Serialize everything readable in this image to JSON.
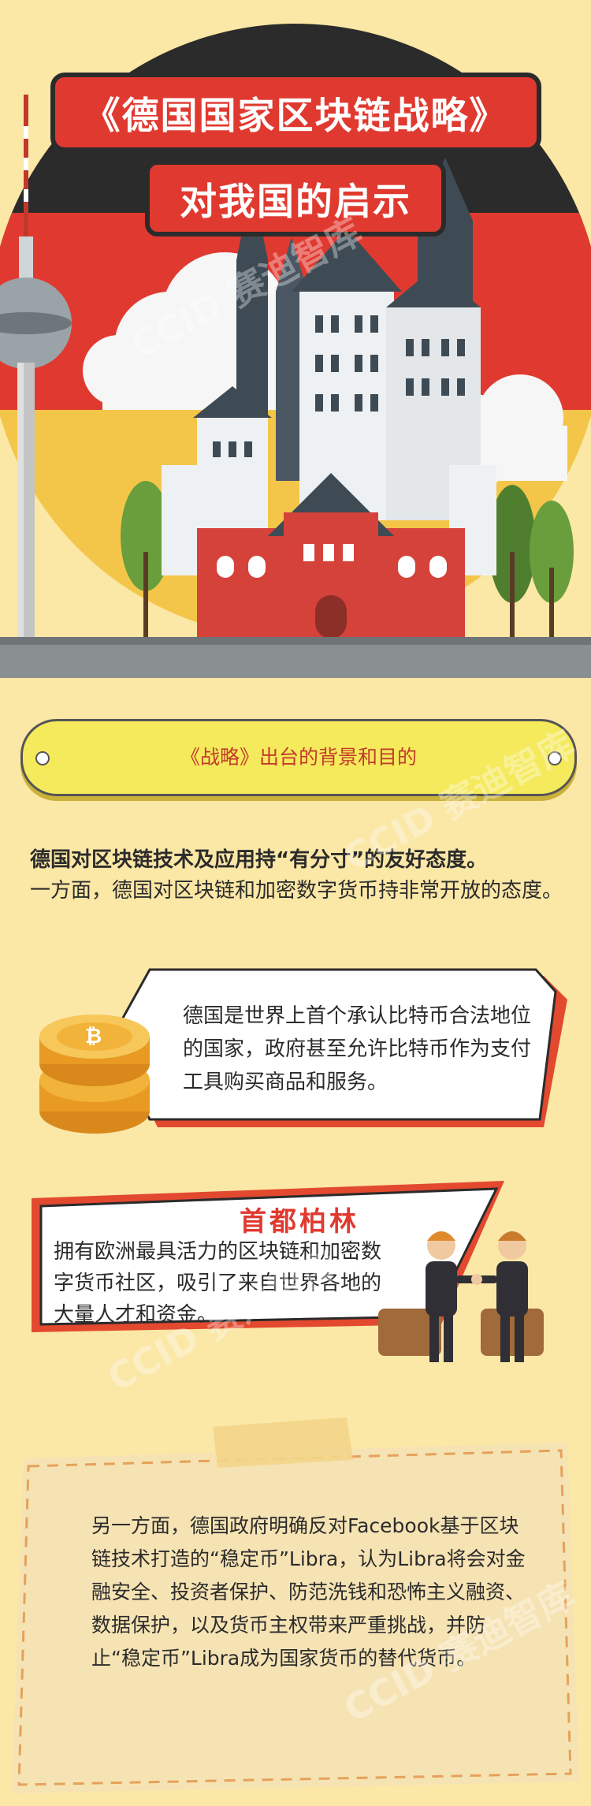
{
  "hero": {
    "title_line1": "《德国国家区块链战略》",
    "title_line2": "对我国的启示"
  },
  "section": {
    "heading": "《战略》出台的背景和目的"
  },
  "intro": {
    "lead": "德国对区块链技术及应用持“有分寸”的友好态度。",
    "body": "一方面，德国对区块链和加密数字货币持非常开放的态度。"
  },
  "bubble1": {
    "text": "德国是世界上首个承认比特币合法地位的国家，政府甚至允许比特币作为支付工具购买商品和服务。"
  },
  "bubble2": {
    "title": "首都柏林",
    "text": "拥有欧洲最具活力的区块链和加密数字货币社区，吸引了来自世界各地的大量人才和资金。"
  },
  "note": {
    "text": "另一方面，德国政府明确反对Facebook基于区块链技术打造的“稳定币”Libra，认为Libra将会对金融安全、投资者保护、防范洗钱和恐怖主义融资、数据保护，以及货币主权带来严重挑战，并防止“稳定币”Libra成为国家货币的替代货币。"
  },
  "watermarks": {
    "brand": "CCID 赛迪智库"
  },
  "colors": {
    "background": "#fbe7a6",
    "flag_black": "#2b2b2b",
    "flag_red": "#e03a30",
    "flag_gold": "#f3c64a",
    "accent": "#e03a30"
  }
}
